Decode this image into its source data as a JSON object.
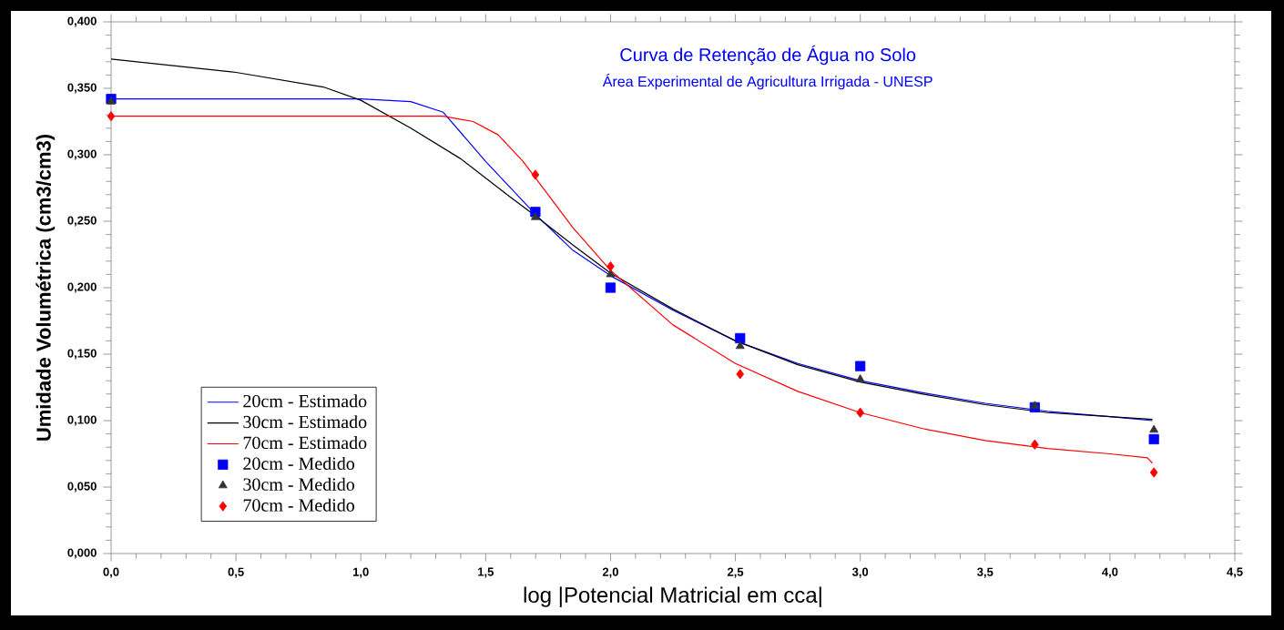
{
  "chart_data": {
    "type": "line",
    "title": "Curva de Retenção de Água no Solo",
    "subtitle": "Área Experimental de Agricultura Irrigada - UNESP",
    "xlabel": "log |Potencial Matricial em cca|",
    "ylabel": "Umidade Volumétrica (cm3/cm3)",
    "xlim": [
      0,
      4.5
    ],
    "ylim": [
      0,
      0.4
    ],
    "xticks": [
      {
        "value": 0,
        "label": "0,0"
      },
      {
        "value": 0.5,
        "label": "0,5"
      },
      {
        "value": 1,
        "label": "1,0"
      },
      {
        "value": 1.5,
        "label": "1,5"
      },
      {
        "value": 2,
        "label": "2,0"
      },
      {
        "value": 2.5,
        "label": "2,5"
      },
      {
        "value": 3,
        "label": "3,0"
      },
      {
        "value": 3.5,
        "label": "3,5"
      },
      {
        "value": 4,
        "label": "4,0"
      },
      {
        "value": 4.5,
        "label": "4,5"
      }
    ],
    "yticks": [
      {
        "value": 0,
        "label": "0,000"
      },
      {
        "value": 0.05,
        "label": "0,050"
      },
      {
        "value": 0.1,
        "label": "0,100"
      },
      {
        "value": 0.15,
        "label": "0,150"
      },
      {
        "value": 0.2,
        "label": "0,200"
      },
      {
        "value": 0.25,
        "label": "0,250"
      },
      {
        "value": 0.3,
        "label": "0,300"
      },
      {
        "value": 0.35,
        "label": "0,350"
      },
      {
        "value": 0.4,
        "label": "0,400"
      }
    ],
    "grid": false,
    "legend": "bottom left",
    "series": [
      {
        "name": "20cm - Estimado",
        "marker": "none",
        "color": "#0000ff",
        "x": [
          0,
          1.0,
          1.2,
          1.33,
          1.5,
          1.7,
          1.85,
          2.0,
          2.25,
          2.5,
          2.75,
          3.0,
          3.25,
          3.5,
          3.75,
          4.0,
          4.17
        ],
        "values": [
          0.342,
          0.342,
          0.34,
          0.332,
          0.295,
          0.255,
          0.228,
          0.209,
          0.183,
          0.16,
          0.143,
          0.13,
          0.121,
          0.113,
          0.107,
          0.103,
          0.1
        ]
      },
      {
        "name": "30cm - Estimado",
        "marker": "none",
        "color": "#000000",
        "x": [
          0,
          0.5,
          0.85,
          1.0,
          1.2,
          1.4,
          1.6,
          1.7,
          1.85,
          2.0,
          2.25,
          2.5,
          2.75,
          3.0,
          3.25,
          3.5,
          3.75,
          4.0,
          4.17
        ],
        "values": [
          0.372,
          0.362,
          0.351,
          0.341,
          0.32,
          0.297,
          0.268,
          0.254,
          0.232,
          0.211,
          0.184,
          0.16,
          0.142,
          0.129,
          0.12,
          0.112,
          0.106,
          0.103,
          0.101
        ]
      },
      {
        "name": "70cm - Estimado",
        "marker": "none",
        "color": "#ff0000",
        "x": [
          0,
          1.33,
          1.45,
          1.55,
          1.65,
          1.75,
          1.85,
          2.0,
          2.25,
          2.5,
          2.75,
          3.0,
          3.25,
          3.5,
          3.75,
          4.0,
          4.15,
          4.17
        ],
        "values": [
          0.329,
          0.329,
          0.325,
          0.315,
          0.295,
          0.27,
          0.245,
          0.213,
          0.172,
          0.143,
          0.122,
          0.106,
          0.094,
          0.085,
          0.079,
          0.075,
          0.072,
          0.068
        ]
      },
      {
        "name": "20cm - Medido",
        "type": "scatter",
        "marker": "square",
        "color": "#0000ff",
        "x": [
          0,
          1.699,
          2.0,
          2.519,
          3.0,
          3.699,
          4.176
        ],
        "values": [
          0.342,
          0.257,
          0.2,
          0.162,
          0.141,
          0.11,
          0.086
        ]
      },
      {
        "name": "30cm - Medido",
        "type": "scatter",
        "marker": "triangle",
        "color": "#333333",
        "x": [
          0,
          1.699,
          2.0,
          2.519,
          3.0,
          3.699,
          4.176
        ],
        "values": [
          0.34,
          0.253,
          0.21,
          0.156,
          0.131,
          0.111,
          0.093
        ]
      },
      {
        "name": "70cm - Medido",
        "type": "scatter",
        "marker": "diamond",
        "color": "#ff0000",
        "x": [
          0,
          1.699,
          2.0,
          2.519,
          3.0,
          3.699,
          4.176
        ],
        "values": [
          0.329,
          0.285,
          0.216,
          0.135,
          0.106,
          0.082,
          0.061
        ]
      }
    ]
  }
}
